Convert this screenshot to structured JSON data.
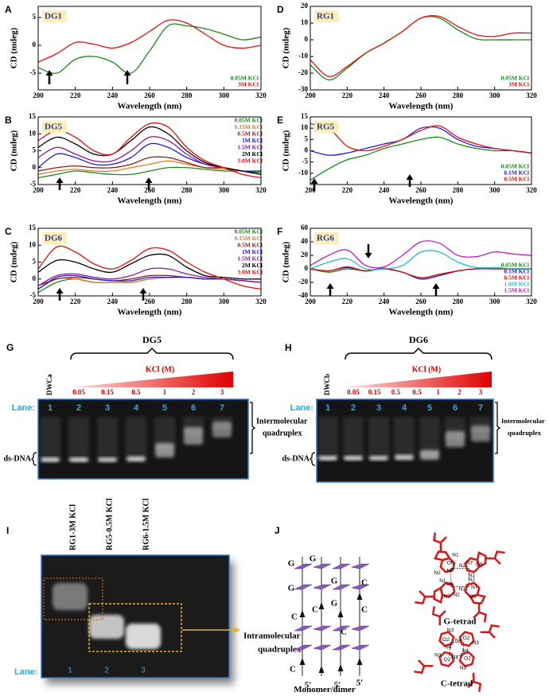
{
  "chart_data": [
    {
      "type": "line",
      "panel": "A",
      "title": "DG1",
      "xlabel": "Wavelength (nm)",
      "ylabel": "CD (mdeg)",
      "x": [
        200,
        210,
        220,
        230,
        240,
        250,
        260,
        270,
        280,
        290,
        300,
        310,
        320
      ],
      "xlim": [
        200,
        320
      ],
      "xticks": [
        200,
        220,
        240,
        260,
        280,
        300,
        320
      ],
      "ylim": [
        -8,
        7
      ],
      "yticks": [
        -5,
        0,
        5
      ],
      "legend": "lower right",
      "series": [
        {
          "name": "0.05M KCl",
          "color": "#1a8a1a",
          "values": [
            -4,
            -5,
            -2.5,
            -2,
            -3,
            -5,
            -1,
            3.5,
            3.5,
            3,
            2,
            1,
            1.5
          ]
        },
        {
          "name": "3M KCl",
          "color": "#e01010",
          "values": [
            -3,
            -1.5,
            0.5,
            0.2,
            -0.5,
            0.5,
            2.5,
            4.5,
            4,
            2,
            0,
            -0.5,
            0
          ]
        }
      ]
    },
    {
      "type": "line",
      "panel": "B",
      "title": "DG5",
      "xlabel": "Wavelength (nm)",
      "ylabel": "CD (mdeg)",
      "x": [
        200,
        210,
        220,
        230,
        240,
        250,
        260,
        270,
        280,
        290,
        300,
        310,
        320
      ],
      "xlim": [
        200,
        320
      ],
      "xticks": [
        200,
        220,
        240,
        260,
        280,
        300,
        320
      ],
      "ylim": [
        -5,
        15
      ],
      "yticks": [
        -5,
        0,
        5,
        10,
        15
      ],
      "legend": "upper right",
      "series": [
        {
          "name": "0.05M KCl",
          "color": "#1a8a1a",
          "values": [
            -3,
            -2,
            -1,
            -1.5,
            -2,
            -2,
            -1,
            0,
            0,
            -0.5,
            -1,
            -1,
            -1.5
          ]
        },
        {
          "name": "0.15M KCl",
          "color": "#e07b20",
          "values": [
            -2,
            -1,
            -0.5,
            -1,
            -1,
            0,
            1,
            2,
            1,
            0,
            -0.5,
            -1,
            -1
          ]
        },
        {
          "name": "0.5M KCl",
          "color": "#8b1a1a",
          "values": [
            -1,
            0,
            0.5,
            0,
            0,
            1,
            3,
            3,
            1.5,
            0,
            0,
            -1,
            -1
          ]
        },
        {
          "name": "1M KCl",
          "color": "#2020d0",
          "values": [
            0,
            4,
            3,
            1,
            1,
            3,
            7,
            6,
            3,
            1,
            0,
            -1,
            -1
          ]
        },
        {
          "name": "1.5M KCl",
          "color": "#8a1a9a",
          "values": [
            3,
            6,
            4,
            2,
            2,
            5,
            9,
            8,
            4,
            1,
            0,
            -1,
            -2
          ]
        },
        {
          "name": "2M KCl",
          "color": "#000000",
          "values": [
            6,
            9,
            7,
            4,
            4,
            8,
            12,
            10,
            5,
            1.5,
            0,
            -1,
            -2
          ]
        },
        {
          "name": "3.0M KCl",
          "color": "#e01010",
          "values": [
            8,
            11,
            9,
            5,
            4,
            9,
            13,
            12,
            6,
            2,
            0,
            -2,
            -3
          ]
        }
      ]
    },
    {
      "type": "line",
      "panel": "C",
      "title": "DG6",
      "xlabel": "Wavelength (nm)",
      "ylabel": "CD (mdeg)",
      "x": [
        200,
        210,
        220,
        230,
        240,
        250,
        260,
        270,
        280,
        290,
        300,
        310,
        320
      ],
      "xlim": [
        200,
        320
      ],
      "xticks": [
        200,
        220,
        240,
        260,
        280,
        300,
        320
      ],
      "ylim": [
        -5,
        15
      ],
      "yticks": [
        -5,
        0,
        5,
        10,
        15
      ],
      "legend": "upper right",
      "series": [
        {
          "name": "0.05M KCl",
          "color": "#1a8a1a",
          "values": [
            -4,
            -1,
            0,
            -1,
            -1,
            -1,
            0,
            0.5,
            0.5,
            0,
            0,
            -0.5,
            -1
          ]
        },
        {
          "name": "0.15M KCl",
          "color": "#e07b20",
          "values": [
            -3,
            0,
            0,
            -1,
            -1,
            -1,
            0,
            0.5,
            0.5,
            0,
            0,
            -0.5,
            -1
          ]
        },
        {
          "name": "0.5M KCl",
          "color": "#8b1a1a",
          "values": [
            -2,
            0,
            0.5,
            0,
            -0.5,
            0,
            1,
            1,
            0.5,
            0,
            0,
            -0.5,
            -1
          ]
        },
        {
          "name": "1M KCl",
          "color": "#2020d0",
          "values": [
            -3,
            0.5,
            1,
            0,
            -0.5,
            -0.5,
            0.5,
            0.5,
            0.5,
            0,
            0,
            -0.5,
            -1
          ]
        },
        {
          "name": "1.5M KCl",
          "color": "#8a1a9a",
          "values": [
            -2,
            1,
            1.5,
            0.5,
            0,
            1,
            3,
            3,
            1.5,
            0.5,
            0,
            -0.5,
            -1
          ]
        },
        {
          "name": "2M KCl",
          "color": "#000000",
          "values": [
            2,
            5.5,
            5,
            3,
            2,
            4.5,
            7,
            7,
            3.5,
            1,
            0.5,
            0,
            0
          ]
        },
        {
          "name": "3.0M KCl",
          "color": "#e01010",
          "values": [
            3,
            9.5,
            8,
            4.5,
            3,
            5.5,
            9,
            8.5,
            5,
            2,
            0,
            -2,
            -3
          ]
        }
      ]
    },
    {
      "type": "line",
      "panel": "D",
      "title": "RG1",
      "xlabel": "Wavelength (nm)",
      "ylabel": "CD (mdeg)",
      "x": [
        200,
        210,
        220,
        230,
        240,
        250,
        260,
        270,
        280,
        290,
        300,
        310,
        320
      ],
      "xlim": [
        200,
        320
      ],
      "xticks": [
        200,
        220,
        240,
        260,
        280,
        300,
        320
      ],
      "ylim": [
        -30,
        20
      ],
      "yticks": [
        -30,
        -20,
        -10,
        0,
        10,
        20
      ],
      "legend": "lower right",
      "series": [
        {
          "name": "0.05M KCl",
          "color": "#1a8a1a",
          "values": [
            -15,
            -24,
            -17,
            -8,
            -2,
            5,
            13,
            13,
            6,
            0.5,
            0,
            0,
            0
          ]
        },
        {
          "name": "3M KCl",
          "color": "#e01010",
          "values": [
            -12,
            -22,
            -16,
            -8,
            -2,
            5,
            13,
            14,
            8,
            3,
            2,
            4,
            4
          ]
        }
      ]
    },
    {
      "type": "line",
      "panel": "E",
      "title": "RG5",
      "xlabel": "Wavelength (nm)",
      "ylabel": "CD (mdeg)",
      "x": [
        200,
        210,
        220,
        230,
        240,
        250,
        260,
        270,
        280,
        290,
        300,
        310,
        320
      ],
      "xlim": [
        200,
        320
      ],
      "xticks": [
        200,
        220,
        240,
        260,
        280,
        300,
        320
      ],
      "ylim": [
        -15,
        15
      ],
      "yticks": [
        -10,
        -5,
        0,
        5,
        10,
        15
      ],
      "legend": "lower right",
      "series": [
        {
          "name": "0.05M KCl",
          "color": "#1a8a1a",
          "values": [
            -13,
            -8,
            -4,
            -2,
            1,
            3,
            5,
            6,
            3,
            1,
            0,
            0,
            -1
          ]
        },
        {
          "name": "0.1M KCl",
          "color": "#2020d0",
          "values": [
            0,
            -2,
            -1,
            1,
            3,
            5,
            10,
            10,
            5,
            2,
            1,
            0,
            -1
          ]
        },
        {
          "name": "0.5M KCl",
          "color": "#e01010",
          "values": [
            12,
            10,
            2,
            0,
            2,
            5,
            9,
            11,
            6,
            3,
            1,
            0,
            -1
          ]
        }
      ]
    },
    {
      "type": "line",
      "panel": "F",
      "title": "RG6",
      "xlabel": "Wavelength (nm)",
      "ylabel": "CD (mdeg)",
      "x": [
        200,
        210,
        220,
        230,
        240,
        250,
        260,
        270,
        280,
        290,
        300,
        310,
        320
      ],
      "xlim": [
        200,
        320
      ],
      "xticks": [
        200,
        220,
        240,
        260,
        280,
        300,
        320
      ],
      "ylim": [
        -40,
        60
      ],
      "yticks": [
        -40,
        -20,
        0,
        20,
        40,
        60
      ],
      "legend": "lower right",
      "series": [
        {
          "name": "0.05M KCl",
          "color": "#1a8a1a",
          "values": [
            0,
            -5,
            0,
            -3,
            0,
            -5,
            -15,
            -10,
            -3,
            0,
            0,
            0,
            0
          ]
        },
        {
          "name": "0.1M KCl",
          "color": "#2020d0",
          "values": [
            0,
            -3,
            2,
            -3,
            0,
            -5,
            -15,
            -10,
            -3,
            0,
            0,
            0,
            0
          ]
        },
        {
          "name": "0.5M KCl",
          "color": "#e01010",
          "values": [
            0,
            -3,
            3,
            -3,
            1,
            -5,
            -13,
            -8,
            -3,
            0,
            0,
            0,
            0
          ]
        },
        {
          "name": "1.0M KCl",
          "color": "#20c0c0",
          "values": [
            0,
            10,
            15,
            0,
            0,
            5,
            25,
            25,
            10,
            2,
            2,
            0,
            0
          ]
        },
        {
          "name": "1.5M KCl",
          "color": "#c020c0",
          "values": [
            5,
            20,
            28,
            5,
            3,
            20,
            40,
            38,
            20,
            18,
            25,
            22,
            20
          ]
        }
      ]
    }
  ],
  "gels": [
    {
      "panel": "G",
      "sample": "DG5",
      "control": "DWCa",
      "salt": "KCl (M)",
      "concentrations": [
        "0.05",
        "0.15",
        "0.5",
        "1",
        "2",
        "3"
      ],
      "lane_title": "Lane:",
      "lanes": [
        "1",
        "2",
        "3",
        "4",
        "5",
        "6",
        "7"
      ],
      "band": "ds-DNA",
      "product": [
        "Intermolecular",
        "quadruplex"
      ]
    },
    {
      "panel": "H",
      "sample": "DG6",
      "control": "DWCb",
      "salt": "KCl (M)",
      "concentrations": [
        "0.05",
        "0.15",
        "0.5",
        "0.5",
        "1",
        "2",
        "3"
      ],
      "lane_title": "Lane:",
      "lanes": [
        "1",
        "2",
        "3",
        "4",
        "5",
        "6",
        "7"
      ],
      "band": "ds-DNA",
      "product": [
        "Intermolecular",
        "quadruplex"
      ]
    }
  ],
  "rna_gel": {
    "panel": "I",
    "samples": [
      "RG1-3M KCl",
      "RG5-0.5M KCl",
      "RG6-1.5M KCl"
    ],
    "lane_title": "Lane:",
    "lanes": [
      "1",
      "2",
      "3"
    ],
    "product": [
      "Intramolecular",
      "quadruplex"
    ]
  },
  "structure": {
    "panel": "J",
    "strand_labels": [
      "G",
      "G",
      "G",
      "G",
      "C",
      "C",
      "G",
      "C",
      "C",
      "C",
      "5′",
      "5′",
      "5′",
      "C"
    ],
    "caption": "Monomer/dimer",
    "g_tetrad": {
      "label": "G-tetrad",
      "atoms": [
        "N2",
        "N7",
        "O6",
        "N1",
        "N2",
        "N7",
        "O6",
        "N1",
        "N2",
        "N7",
        "O6",
        "N1",
        "N2",
        "N7",
        "O6",
        "N1"
      ]
    },
    "c_tetrad": {
      "label": "C-tetrad",
      "atoms": [
        "N4",
        "O2",
        "N3",
        "N4",
        "O2",
        "N3",
        "N4",
        "O2",
        "N3",
        "N4",
        "O2",
        "N3"
      ]
    }
  }
}
